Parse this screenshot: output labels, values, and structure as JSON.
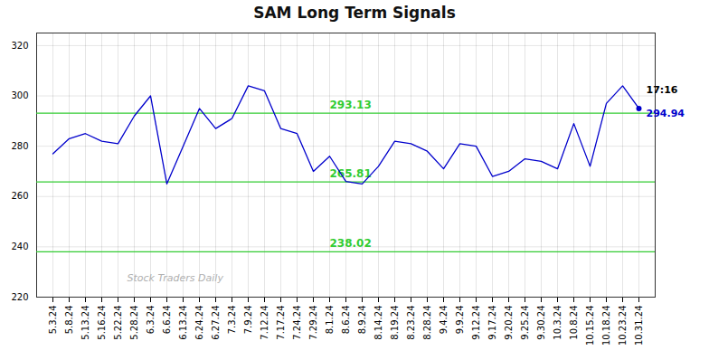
{
  "chart_data": {
    "type": "line",
    "title": "SAM Long Term Signals",
    "categories": [
      "5.3.24",
      "5.8.24",
      "5.13.24",
      "5.16.24",
      "5.22.24",
      "5.28.24",
      "6.3.24",
      "6.6.24",
      "6.13.24",
      "6.24.24",
      "6.27.24",
      "7.3.24",
      "7.9.24",
      "7.12.24",
      "7.17.24",
      "7.24.24",
      "7.29.24",
      "8.1.24",
      "8.6.24",
      "8.9.24",
      "8.14.24",
      "8.19.24",
      "8.23.24",
      "8.28.24",
      "9.4.24",
      "9.9.24",
      "9.12.24",
      "9.17.24",
      "9.20.24",
      "9.25.24",
      "9.30.24",
      "10.3.24",
      "10.8.24",
      "10.15.24",
      "10.18.24",
      "10.23.24",
      "10.31.24"
    ],
    "values": [
      277,
      283,
      285,
      282,
      281,
      292,
      300,
      265,
      280,
      295,
      287,
      291,
      304,
      302,
      287,
      285,
      270,
      276,
      266,
      265,
      272,
      282,
      281,
      278,
      271,
      281,
      280,
      268,
      270,
      275,
      274,
      271,
      289,
      272,
      297,
      304,
      295
    ],
    "color": "#0000cc",
    "ylim": [
      220,
      325
    ],
    "yticks": [
      220,
      240,
      260,
      280,
      300,
      320
    ],
    "grid": true,
    "hlines": [
      {
        "value": 293.13,
        "label": "293.13",
        "color": "#33cc33"
      },
      {
        "value": 265.81,
        "label": "265.81",
        "color": "#33cc33"
      },
      {
        "value": 238.02,
        "label": "238.02",
        "color": "#33cc33"
      }
    ],
    "annotations": [
      {
        "text": "17:16",
        "color": "#000000"
      },
      {
        "text": "294.94",
        "color": "#0000cc"
      }
    ],
    "watermark": {
      "text": "Stock Traders Daily",
      "color": "#b0b0b0"
    }
  }
}
